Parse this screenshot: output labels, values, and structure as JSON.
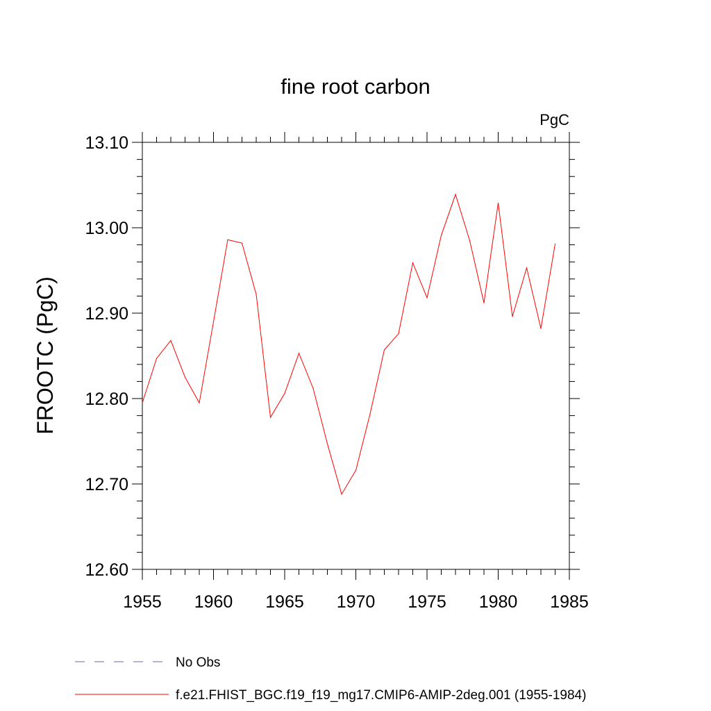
{
  "chart_data": {
    "type": "line",
    "title": "fine root carbon",
    "units": "PgC",
    "xlabel": "",
    "ylabel": "FROOTC  (PgC)",
    "xlim": [
      1955,
      1985
    ],
    "ylim": [
      12.6,
      13.1
    ],
    "xticks": [
      "1955",
      "1960",
      "1965",
      "1970",
      "1975",
      "1980",
      "1985"
    ],
    "yticks": [
      "12.60",
      "12.70",
      "12.80",
      "12.90",
      "13.00",
      "13.10"
    ],
    "grid": false,
    "legend_position": "bottom-left",
    "series": [
      {
        "name": "f.e21.FHIST_BGC.f19_f19_mg17.CMIP6-AMIP-2deg.001 (1955-1984)",
        "color": "#ff0000",
        "style": "solid",
        "x": [
          1955,
          1956,
          1957,
          1958,
          1959,
          1960,
          1961,
          1962,
          1963,
          1964,
          1965,
          1966,
          1967,
          1968,
          1969,
          1970,
          1971,
          1972,
          1973,
          1974,
          1975,
          1976,
          1977,
          1978,
          1979,
          1980,
          1981,
          1982,
          1983,
          1984
        ],
        "y": [
          12.795,
          12.847,
          12.868,
          12.825,
          12.795,
          12.89,
          12.986,
          12.982,
          12.922,
          12.778,
          12.806,
          12.853,
          12.812,
          12.747,
          12.688,
          12.716,
          12.782,
          12.857,
          12.876,
          12.959,
          12.918,
          12.991,
          13.039,
          12.985,
          12.912,
          13.029,
          12.896,
          12.953,
          12.882,
          12.981
        ]
      }
    ],
    "legend": [
      {
        "label": "No Obs",
        "color": "#6666aa",
        "style": "dashed"
      },
      {
        "label": "f.e21.FHIST_BGC.f19_f19_mg17.CMIP6-AMIP-2deg.001 (1955-1984)",
        "color": "#ff0000",
        "style": "solid"
      }
    ]
  }
}
